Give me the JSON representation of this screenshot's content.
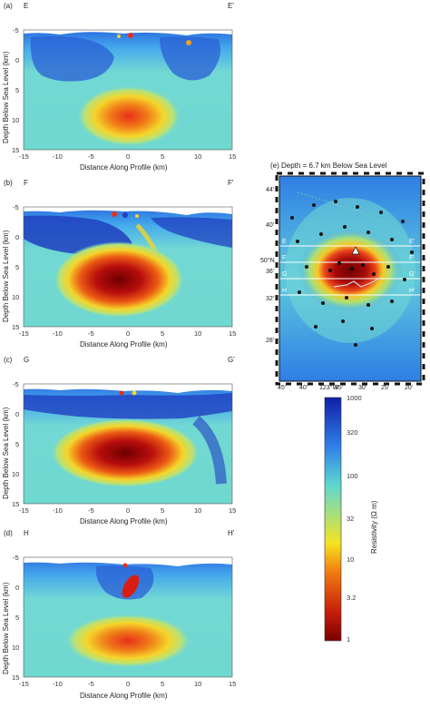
{
  "figure": {
    "panels": [
      {
        "letter": "(a)",
        "left_label": "E",
        "right_label": "E'"
      },
      {
        "letter": "(b)",
        "left_label": "F",
        "right_label": "F'"
      },
      {
        "letter": "(c)",
        "left_label": "G",
        "right_label": "G'"
      },
      {
        "letter": "(d)",
        "left_label": "H",
        "right_label": "H'"
      }
    ],
    "xlabel": "Distance Along Profile (km)",
    "ylabel": "Depth Below Sea Level (km)",
    "xticks": [
      "-15",
      "-10",
      "-5",
      "0",
      "5",
      "10",
      "15"
    ],
    "yticks": [
      "-5",
      "0",
      "5",
      "10",
      "15"
    ],
    "map": {
      "title": "(e) Depth = 6.7 km Below Sea Level",
      "lat_ticks": [
        "44'",
        "40'",
        "50°N",
        "36'",
        "32'",
        "28'"
      ],
      "lon_ticks": [
        "45'",
        "40'",
        "123°W",
        "35'",
        "30'",
        "25'",
        "20'"
      ],
      "profile_left": [
        "E",
        "F",
        "G",
        "H"
      ],
      "profile_right": [
        "E'",
        "F'",
        "G'",
        "H'"
      ]
    },
    "colorbar": {
      "label": "Resistivity (Ω m)",
      "ticks": [
        "1000",
        "320",
        "100",
        "32",
        "10",
        "3.2",
        "1"
      ]
    }
  },
  "chart_data": [
    {
      "type": "heatmap",
      "title": "",
      "xlabel": "Distance Along Profile (km)",
      "ylabel": "Depth Below Sea Level (km)",
      "xlim": [
        -15,
        15
      ],
      "ylim": [
        -5,
        15
      ],
      "conductor": {
        "center_x_km": 0,
        "center_depth_km": 9,
        "min_resistivity_ohm_m": 5
      },
      "profile": "E-E'"
    },
    {
      "type": "heatmap",
      "title": "",
      "xlabel": "Distance Along Profile (km)",
      "ylabel": "Depth Below Sea Level (km)",
      "xlim": [
        -15,
        15
      ],
      "ylim": [
        -5,
        15
      ],
      "conductor": {
        "center_x_km": -1,
        "center_depth_km": 7,
        "min_resistivity_ohm_m": 1.5
      },
      "profile": "F-F'"
    },
    {
      "type": "heatmap",
      "title": "",
      "xlabel": "Distance Along Profile (km)",
      "ylabel": "Depth Below Sea Level (km)",
      "xlim": [
        -15,
        15
      ],
      "ylim": [
        -5,
        15
      ],
      "conductor": {
        "center_x_km": 0,
        "center_depth_km": 6.5,
        "min_resistivity_ohm_m": 1
      },
      "profile": "G-G'"
    },
    {
      "type": "heatmap",
      "title": "",
      "xlabel": "Distance Along Profile (km)",
      "ylabel": "Depth Below Sea Level (km)",
      "xlim": [
        -15,
        15
      ],
      "ylim": [
        -5,
        15
      ],
      "conductor": {
        "center_x_km": 0,
        "center_depth_km": 9,
        "min_resistivity_ohm_m": 5
      },
      "profile": "H-H'"
    },
    {
      "type": "heatmap",
      "title": "(e) Depth = 6.7 km Below Sea Level",
      "lon_ticks": [
        "45'",
        "40'",
        "35'",
        "30'",
        "25'",
        "20'"
      ],
      "lat_ticks": [
        "44'",
        "40'",
        "36'",
        "32'",
        "28'"
      ]
    },
    {
      "type": "heatmap",
      "title": "colorbar",
      "label": "Resistivity (Ω m)",
      "scale": "log",
      "range": [
        1,
        1000
      ],
      "tick_values": [
        1000,
        320,
        100,
        32,
        10,
        3.2,
        1
      ]
    }
  ]
}
